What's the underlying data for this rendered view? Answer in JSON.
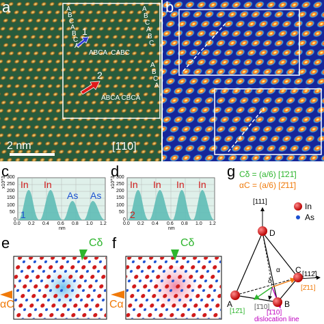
{
  "panels": {
    "a": {
      "letter": "a",
      "stacking_top": [
        "A",
        "B",
        "C",
        "A",
        "B",
        "C",
        "A"
      ],
      "stacking_mid": "ABCA  CABC",
      "stacking_bottom": "ABCA CBCA",
      "stacking_right": [
        "A",
        "B",
        "C",
        "A",
        "B",
        "C",
        "A",
        "B",
        "C",
        "A"
      ],
      "arrow1": "1",
      "arrow2": "2",
      "scalebar": "2 nm",
      "zone_axis": "[1̄10]"
    },
    "b": {
      "letter": "b"
    },
    "c": {
      "letter": "c",
      "yunit": "x10^3",
      "xunit": "nm",
      "yticks": [
        "0",
        "50",
        "100",
        "150",
        "200",
        "250",
        "300"
      ],
      "xticks": [
        "0.0",
        "0.2",
        "0.4",
        "0.6",
        "0.8",
        "1.0",
        "1.2"
      ],
      "peak_labels": [
        "In",
        "In",
        "As",
        "As"
      ],
      "index": "1"
    },
    "d": {
      "letter": "d",
      "yunit": "x10^3",
      "xunit": "nm",
      "yticks": [
        "0",
        "50",
        "100",
        "150",
        "200",
        "250",
        "300"
      ],
      "xticks": [
        "0.0",
        "0.2",
        "0.4",
        "0.6",
        "0.8",
        "1.0",
        "1.2"
      ],
      "peak_labels": [
        "In",
        "In",
        "In",
        "In"
      ],
      "index": "2"
    },
    "e": {
      "letter": "e",
      "top_label": "Cδ",
      "left_label": "αC"
    },
    "f": {
      "letter": "f",
      "top_label": "Cδ",
      "left_label": "Cα"
    },
    "g": {
      "letter": "g",
      "eq1": "Cδ = (a/6) [1̄21̄]",
      "eq2": "αC = (a/6) [2̄11̄]",
      "dir_111": "[111]",
      "vertex_D": "D",
      "vertex_A": "A",
      "vertex_B": "B",
      "vertex_C": "C",
      "alpha": "α",
      "delta": "δ",
      "dir_112": "[112̄]",
      "dir_211": "[2̄11]",
      "dir_121": "[12̄1]",
      "dir_110a": "[1̄10]",
      "dir_110b": "[1̄10]",
      "dislocation": "dislocation line",
      "legend_in": "In",
      "legend_as": "As"
    }
  },
  "colors": {
    "stem_bg": "#2a6e2a",
    "atom_hot": "#ff9a1a",
    "atom_core": "#fff3b0",
    "b_bg": "#1b2fa0",
    "b_mid": "#3db7e6",
    "plot_bg": "#dff0ea",
    "peak": "#5fbcb6",
    "in_red": "#d11a1a",
    "as_blue": "#1a4fd1",
    "delta_green": "#2db52d",
    "alpha_orange": "#f07a0a",
    "magenta": "#c000c0"
  }
}
